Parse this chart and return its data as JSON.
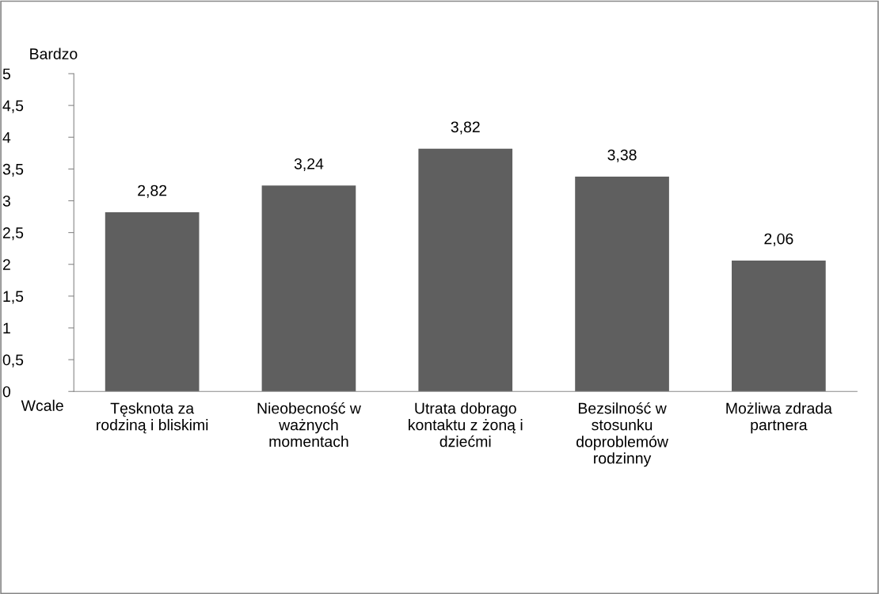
{
  "chart_data": {
    "type": "bar",
    "categories": [
      "Tęsknota za\nrodziną i bliskimi",
      "Nieobecność w\nważnych\nmomentach",
      "Utrata dobrago\nkontaktu z żoną i\ndziećmi",
      "Bezsilność w\nstosunku\ndoproblemów\nrodzinny",
      "Możliwa zdrada\npartnera"
    ],
    "values": [
      2.82,
      3.24,
      3.82,
      3.38,
      2.06
    ],
    "value_labels": [
      "2,82",
      "3,24",
      "3,82",
      "3,38",
      "2,06"
    ],
    "color": "#5f5f5f",
    "ylim": [
      0,
      5
    ],
    "yticks": [
      0,
      {
        "value": 0.5,
        "label": "0,5"
      },
      1,
      {
        "value": 1.5,
        "label": "1,5"
      },
      2,
      {
        "value": 2.5,
        "label": "2,5"
      },
      3,
      {
        "value": 3.5,
        "label": "3,5"
      },
      4,
      {
        "value": 4.5,
        "label": "4,5"
      },
      5
    ],
    "annotations": [
      "Bardzo",
      "Wcale"
    ],
    "grid": false,
    "legend": false
  }
}
